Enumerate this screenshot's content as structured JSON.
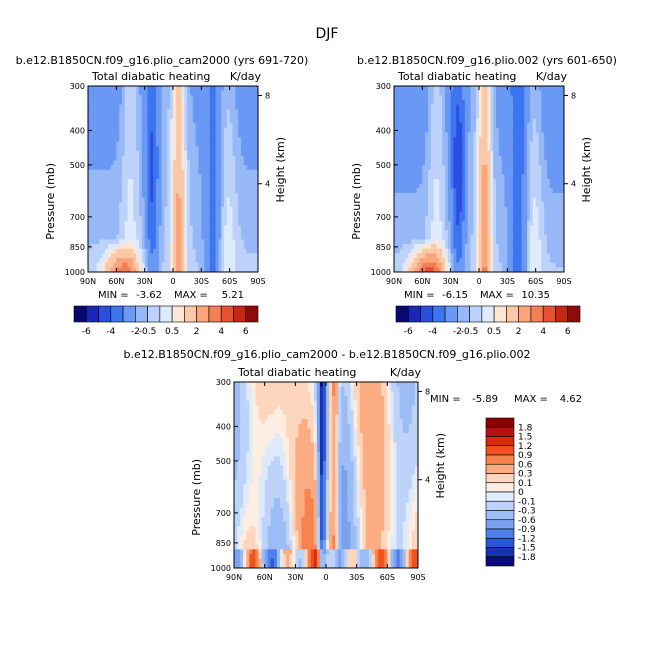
{
  "page": {
    "title": "DJF"
  },
  "chart_data": [
    {
      "type": "heatmap",
      "id": "panel-left",
      "title": "b.e12.B1850CN.f09_g16.plio_cam2000 (yrs 691-720)",
      "subtitle": "Total diabatic heating",
      "units": "K/day",
      "ylabel": "Pressure (mb)",
      "ylabel_right": "Height (km)",
      "x_ticks": [
        "90N",
        "60N",
        "30N",
        "0",
        "30S",
        "60S",
        "90S"
      ],
      "y_ticks": [
        "300",
        "400",
        "500",
        "700",
        "850",
        "1000"
      ],
      "y_right_ticks": [
        "8",
        "4"
      ],
      "min_label": "MIN =",
      "min": "-3.62",
      "max_label": "MAX =",
      "max": "5.21",
      "colorbar_labels": [
        "-6",
        "-4",
        "-2",
        "-0.5",
        "0.5",
        "2",
        "4",
        "6"
      ]
    },
    {
      "type": "heatmap",
      "id": "panel-right",
      "title": "b.e12.B1850CN.f09_g16.plio.002 (yrs 601-650)",
      "subtitle": "Total diabatic heating",
      "units": "K/day",
      "ylabel": "Pressure (mb)",
      "ylabel_right": "Height (km)",
      "x_ticks": [
        "90N",
        "60N",
        "30N",
        "0",
        "30S",
        "60S",
        "90S"
      ],
      "y_ticks": [
        "300",
        "400",
        "500",
        "700",
        "850",
        "1000"
      ],
      "y_right_ticks": [
        "8",
        "4"
      ],
      "min_label": "MIN =",
      "min": "-6.15",
      "max_label": "MAX =",
      "max": "10.35",
      "colorbar_labels": [
        "-6",
        "-4",
        "-2",
        "-0.5",
        "0.5",
        "2",
        "4",
        "6"
      ]
    },
    {
      "type": "heatmap",
      "id": "panel-diff",
      "title": "b.e12.B1850CN.f09_g16.plio_cam2000 - b.e12.B1850CN.f09_g16.plio.002",
      "subtitle": "Total diabatic heating",
      "units": "K/day",
      "ylabel": "Pressure (mb)",
      "ylabel_right": "Height (km)",
      "x_ticks": [
        "90N",
        "60N",
        "30N",
        "0",
        "30S",
        "60S",
        "90S"
      ],
      "y_ticks": [
        "300",
        "400",
        "500",
        "700",
        "850",
        "1000"
      ],
      "y_right_ticks": [
        "8",
        "4"
      ],
      "min_label": "MIN =",
      "min": "-5.89",
      "max_label": "MAX =",
      "max": "4.62",
      "colorbar_labels": [
        "1.8",
        "1.5",
        "1.2",
        "0.9",
        "0.6",
        "0.3",
        "0.1",
        "0",
        "-0.1",
        "-0.3",
        "-0.6",
        "-0.9",
        "-1.2",
        "-1.5",
        "-1.8"
      ]
    }
  ],
  "colors": {
    "diverging": [
      "#08086e",
      "#1a26b8",
      "#2a4ee0",
      "#3d74f0",
      "#6a98f5",
      "#97b8f7",
      "#bcd2fb",
      "#deebfd",
      "#fde6d4",
      "#fcc9a8",
      "#fba57c",
      "#f57e55",
      "#e8502f",
      "#c72615",
      "#8f0a0a"
    ],
    "diff": [
      "#8b0000",
      "#b4140e",
      "#d9290f",
      "#f2501f",
      "#f7844f",
      "#fbac82",
      "#fdd6bd",
      "#fdeee2",
      "#dfeafb",
      "#bdd3f9",
      "#9bbcf5",
      "#7aa2f1",
      "#4f7feb",
      "#2c56d8",
      "#1632b4",
      "#0a0a7a"
    ]
  }
}
